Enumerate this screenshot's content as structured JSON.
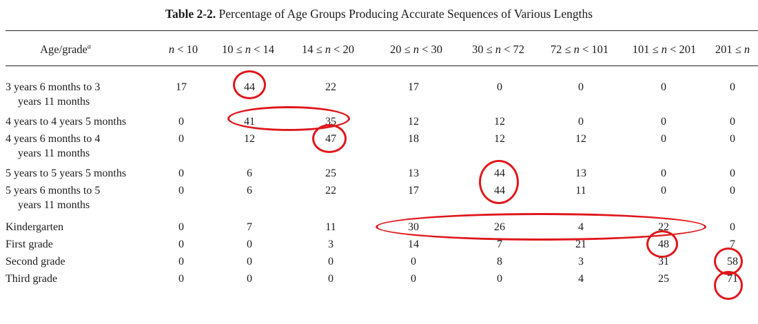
{
  "title_bold": "Table 2-2.",
  "title_rest": " Percentage of Age Groups Producing Accurate Sequences of Various Lengths",
  "header": {
    "age": "Age/grade",
    "age_sup": "a",
    "cols": [
      {
        "pre": "",
        "var": "n",
        "post": " < 10"
      },
      {
        "pre": "10 ≤ ",
        "var": "n",
        "post": " < 14"
      },
      {
        "pre": "14 ≤ ",
        "var": "n",
        "post": " < 20"
      },
      {
        "pre": "20 ≤ ",
        "var": "n",
        "post": " < 30"
      },
      {
        "pre": "30 ≤ ",
        "var": "n",
        "post": " < 72"
      },
      {
        "pre": "72 ≤ ",
        "var": "n",
        "post": " < 101"
      },
      {
        "pre": "101 ≤ ",
        "var": "n",
        "post": " < 201"
      },
      {
        "pre": "201 ≤ ",
        "var": "n",
        "post": ""
      }
    ]
  },
  "rows": [
    {
      "label1": "3 years 6 months to 3",
      "label2": "years 11 months",
      "values": [
        "17",
        "44",
        "22",
        "17",
        "0",
        "0",
        "0",
        "0"
      ]
    },
    {
      "label1": "4 years to 4 years 5 months",
      "label2": "",
      "values": [
        "0",
        "41",
        "35",
        "12",
        "12",
        "0",
        "0",
        "0"
      ]
    },
    {
      "label1": "4 years 6 months to 4",
      "label2": "years 11 months",
      "values": [
        "0",
        "12",
        "47",
        "18",
        "12",
        "12",
        "0",
        "0"
      ]
    },
    {
      "label1": "5 years to 5 years 5 months",
      "label2": "",
      "values": [
        "0",
        "6",
        "25",
        "13",
        "44",
        "13",
        "0",
        "0"
      ]
    },
    {
      "label1": "5 years 6 months to 5",
      "label2": "years 11 months",
      "values": [
        "0",
        "6",
        "22",
        "17",
        "44",
        "11",
        "0",
        "0"
      ]
    },
    {
      "label1": "Kindergarten",
      "label2": "",
      "values": [
        "0",
        "7",
        "11",
        "30",
        "26",
        "4",
        "22",
        "0"
      ]
    },
    {
      "label1": "First grade",
      "label2": "",
      "values": [
        "0",
        "0",
        "3",
        "14",
        "7",
        "21",
        "48",
        "7"
      ]
    },
    {
      "label1": "Second grade",
      "label2": "",
      "values": [
        "0",
        "0",
        "0",
        "0",
        "8",
        "3",
        "31",
        "58"
      ]
    },
    {
      "label1": "Third grade",
      "label2": "",
      "values": [
        "0",
        "0",
        "0",
        "0",
        "0",
        "4",
        "25",
        "71"
      ]
    }
  ],
  "annotation_color": "#e0161b"
}
